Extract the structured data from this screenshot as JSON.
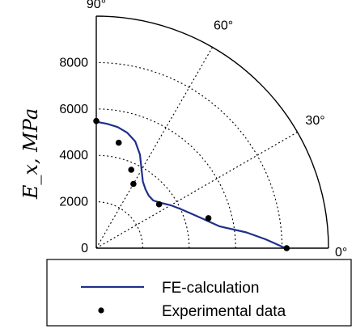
{
  "chart_data": {
    "type": "polar-quadrant",
    "ylabel": "E_x, MPa",
    "radial_ticks": [
      0,
      2000,
      4000,
      6000,
      8000
    ],
    "radial_tick_labels": [
      "0",
      "2000",
      "4000",
      "6000",
      "8000"
    ],
    "radial_max": 10000,
    "angle_ticks": [
      0,
      30,
      60,
      90
    ],
    "angle_tick_labels": [
      "0°",
      "30°",
      "60°",
      "90°"
    ],
    "grid": true,
    "legend_placement": "bottom",
    "series": [
      {
        "name": "FE-calculation",
        "type": "line",
        "color": "#1f2f8a",
        "theta": [
          0,
          3,
          6,
          10,
          15,
          20,
          25,
          30,
          35,
          40,
          45,
          50,
          55,
          60,
          65,
          70,
          75,
          80,
          85,
          90
        ],
        "r": [
          8150,
          7300,
          6500,
          5400,
          4800,
          4350,
          4000,
          3700,
          3400,
          3200,
          3200,
          3300,
          3500,
          3900,
          4450,
          4900,
          5150,
          5300,
          5380,
          5450
        ]
      },
      {
        "name": "Experimental data",
        "type": "scatter",
        "color": "#000000",
        "theta": [
          0,
          15,
          35,
          60,
          66,
          78,
          90
        ],
        "r": [
          8200,
          5000,
          3300,
          3200,
          3700,
          4650,
          5480
        ]
      }
    ]
  }
}
